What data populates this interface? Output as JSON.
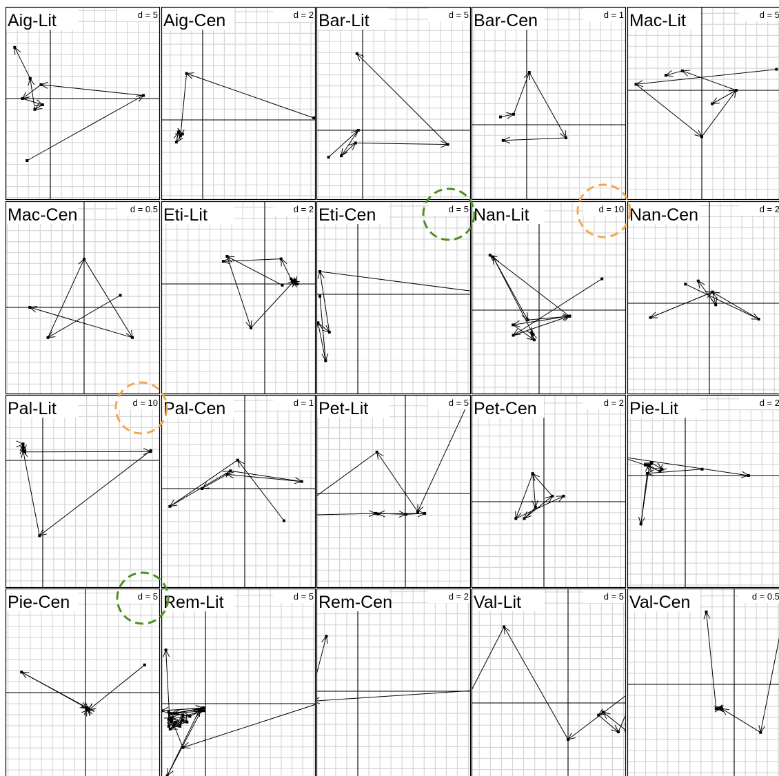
{
  "chart_data": [
    {
      "type": "trajectory",
      "title": "Aig-Lit",
      "scale": "d = 5",
      "points": [
        [
          -1.5,
          -4.0
        ],
        [
          6.0,
          0.2
        ],
        [
          -0.6,
          0.9
        ],
        [
          -1.8,
          0.0
        ],
        [
          -0.5,
          -0.4
        ],
        [
          -1.0,
          -0.7
        ],
        [
          -1.3,
          1.3
        ],
        [
          -2.3,
          3.3
        ]
      ]
    },
    {
      "type": "trajectory",
      "title": "Aig-Cen",
      "scale": "d = 2",
      "points": [
        [
          5.5,
          0.1
        ],
        [
          -0.8,
          2.3
        ],
        [
          -1.1,
          -0.8
        ],
        [
          -1.3,
          -1.1
        ],
        [
          -1.2,
          -0.6
        ],
        [
          -1.0,
          -0.7
        ]
      ]
    },
    {
      "type": "trajectory",
      "title": "Bar-Lit",
      "scale": "d = 5",
      "points": [
        [
          -2.4,
          -1.9
        ],
        [
          -0.3,
          0.0
        ],
        [
          -1.5,
          -1.8
        ],
        [
          -0.5,
          -0.9
        ],
        [
          6.0,
          -1.0
        ],
        [
          -0.4,
          5.4
        ]
      ]
    },
    {
      "type": "trajectory",
      "title": "Bar-Cen",
      "scale": "d = 1",
      "points": [
        [
          -1.0,
          0.3
        ],
        [
          -0.5,
          0.4
        ],
        [
          0.1,
          2.0
        ],
        [
          1.5,
          -0.5
        ],
        [
          -0.9,
          -0.6
        ]
      ]
    },
    {
      "type": "trajectory",
      "title": "Mac-Lit",
      "scale": "d = 5",
      "points": [
        [
          5.0,
          1.4
        ],
        [
          -4.4,
          0.4
        ],
        [
          0.0,
          -3.1
        ],
        [
          2.3,
          0.0
        ],
        [
          0.7,
          -0.9
        ],
        [
          2.3,
          0.0
        ],
        [
          -1.3,
          1.3
        ],
        [
          -2.4,
          1.0
        ]
      ]
    },
    {
      "type": "trajectory",
      "title": "Mac-Cen",
      "scale": "d = 0.5",
      "points": [
        [
          0.6,
          0.2
        ],
        [
          -0.6,
          -0.5
        ],
        [
          0.0,
          0.8
        ],
        [
          0.8,
          -0.5
        ],
        [
          -0.9,
          0.0
        ]
      ]
    },
    {
      "type": "trajectory",
      "title": "Eti-Lit",
      "scale": "d = 2",
      "points": [
        [
          1.4,
          -0.1
        ],
        [
          -3.0,
          2.2
        ],
        [
          -1.1,
          -3.5
        ],
        [
          2.4,
          0.3
        ],
        [
          2.5,
          0.0
        ],
        [
          2.1,
          0.4
        ],
        [
          2.6,
          0.0
        ],
        [
          2.2,
          0.2
        ],
        [
          1.3,
          2.0
        ],
        [
          -3.3,
          1.8
        ]
      ]
    },
    {
      "type": "trajectory",
      "title": "Eti-Cen",
      "scale": "d = 5",
      "points": [
        [
          -2.0,
          -0.1
        ],
        [
          -1.7,
          -3.5
        ],
        [
          -2.1,
          -1.5
        ],
        [
          -1.5,
          -2.0
        ],
        [
          -2.0,
          1.2
        ],
        [
          7.3,
          0.0
        ]
      ]
    },
    {
      "type": "trajectory",
      "title": "Nan-Lit",
      "scale": "d = 10",
      "points": [
        [
          20.5,
          10.2
        ],
        [
          -8.4,
          -8.2
        ],
        [
          10.0,
          -1.9
        ],
        [
          -8.5,
          -4.8
        ],
        [
          -1.6,
          -9.7
        ],
        [
          -2.4,
          -7.3
        ],
        [
          -1.9,
          -7.9
        ],
        [
          -15.0,
          17.3
        ],
        [
          -3.7,
          -3.2
        ],
        [
          9.9,
          -2.0
        ],
        [
          -16.0,
          17.9
        ]
      ]
    },
    {
      "type": "trajectory",
      "title": "Nan-Cen",
      "scale": "d = 2",
      "points": [
        [
          -1.5,
          1.2
        ],
        [
          3.1,
          -1.0
        ],
        [
          0.2,
          0.7
        ],
        [
          -3.7,
          -0.9
        ],
        [
          0.2,
          0.7
        ],
        [
          0.4,
          -0.1
        ],
        [
          -0.7,
          1.4
        ]
      ]
    },
    {
      "type": "trajectory",
      "title": "Pal-Lit",
      "scale": "d = 10",
      "points": [
        [
          33.0,
          3.0
        ],
        [
          -1.0,
          -23.0
        ],
        [
          -6.0,
          3.0
        ],
        [
          -6.0,
          4.0
        ],
        [
          -6.0,
          5.0
        ],
        [
          -6.0,
          5.0
        ],
        [
          -5.5,
          2.6
        ],
        [
          32.9,
          2.7
        ]
      ]
    },
    {
      "type": "trajectory",
      "title": "Pal-Cen",
      "scale": "d = 1",
      "points": [
        [
          1.1,
          -0.9
        ],
        [
          -0.2,
          0.8
        ],
        [
          -2.1,
          -0.5
        ],
        [
          -0.4,
          0.5
        ],
        [
          1.6,
          0.2
        ],
        [
          -0.5,
          0.4
        ],
        [
          -1.2,
          0.0
        ]
      ]
    },
    {
      "type": "trajectory",
      "title": "Pet-Lit",
      "scale": "d = 5",
      "points": [
        [
          14.1,
          -17.0
        ],
        [
          12.2,
          18.0
        ],
        [
          2.3,
          -3.4
        ],
        [
          -5.3,
          7.7
        ],
        [
          -21.5,
          -4.1
        ],
        [
          -5.5,
          -3.7
        ],
        [
          0.1,
          -3.9
        ],
        [
          3.6,
          -3.7
        ],
        [
          -5.1,
          -3.8
        ]
      ]
    },
    {
      "type": "trajectory",
      "title": "Pet-Cen",
      "scale": "d = 2",
      "points": [
        [
          -0.4,
          1.0
        ],
        [
          -0.3,
          -0.2
        ],
        [
          -0.7,
          -0.6
        ],
        [
          0.3,
          0.2
        ],
        [
          -0.4,
          1.0
        ],
        [
          -1.0,
          -0.6
        ],
        [
          0.7,
          0.2
        ]
      ]
    },
    {
      "type": "trajectory",
      "title": "Pie-Lit",
      "scale": "d = 2",
      "points": [
        [
          0.8,
          0.3
        ],
        [
          -1.8,
          0.1
        ],
        [
          -2.1,
          -2.3
        ],
        [
          -1.7,
          0.5
        ],
        [
          -1.8,
          0.5
        ],
        [
          -1.6,
          0.6
        ],
        [
          -1.1,
          0.3
        ],
        [
          -1.2,
          0.2
        ],
        [
          -1.9,
          0.5
        ],
        [
          -3.1,
          0.9
        ],
        [
          3.0,
          0.0
        ]
      ]
    },
    {
      "type": "trajectory",
      "title": "Pie-Cen",
      "scale": "d = 5",
      "points": [
        [
          9.8,
          4.6
        ],
        [
          0.5,
          -2.9
        ],
        [
          0.3,
          -2.7
        ],
        [
          0.3,
          -2.5
        ],
        [
          -10.6,
          3.4
        ],
        [
          0.3,
          -2.6
        ],
        [
          0.5,
          -2.8
        ],
        [
          0.5,
          -2.8
        ],
        [
          0.3,
          -2.9
        ],
        [
          0.2,
          -2.7
        ]
      ]
    },
    {
      "type": "trajectory",
      "title": "Rem-Lit",
      "scale": "d = 5",
      "points": [
        [
          9.5,
          0.5
        ],
        [
          -1.6,
          -3.1
        ],
        [
          -2.6,
          -0.6
        ],
        [
          -1.1,
          -0.9
        ],
        [
          -0.3,
          -0.5
        ],
        [
          -2.7,
          -5.1
        ],
        [
          -0.4,
          -0.4
        ],
        [
          -2.4,
          -0.7
        ],
        [
          -0.1,
          -0.3
        ],
        [
          -3.1,
          -0.5
        ],
        [
          -0.2,
          -0.3
        ],
        [
          -2.2,
          -0.7
        ],
        [
          -0.1,
          -0.5
        ],
        [
          -2.4,
          -1.1
        ],
        [
          -2.4,
          -1.2
        ],
        [
          -2.6,
          -1.1
        ],
        [
          -2.4,
          -1.0
        ],
        [
          -2.6,
          -1.6
        ],
        [
          -2.1,
          -1.3
        ],
        [
          -1.8,
          -1.6
        ],
        [
          -1.6,
          -0.8
        ],
        [
          -1.3,
          -1.3
        ],
        [
          -2.3,
          -1.6
        ],
        [
          -1.6,
          -1.2
        ],
        [
          -1.8,
          -1.5
        ],
        [
          -2.5,
          -1.8
        ],
        [
          -2.8,
          3.8
        ]
      ]
    },
    {
      "type": "trajectory",
      "title": "Rem-Cen",
      "scale": "d = 2",
      "points": [
        [
          8.4,
          0.2
        ],
        [
          -2.3,
          -0.5
        ],
        [
          -2.7,
          -1.8
        ],
        [
          -2.4,
          -0.3
        ],
        [
          -1.6,
          2.8
        ]
      ]
    },
    {
      "type": "trajectory",
      "title": "Val-Lit",
      "scale": "d = 5",
      "points": [
        [
          4.6,
          0.6
        ],
        [
          3.8,
          -1.8
        ],
        [
          2.3,
          -0.6
        ],
        [
          2.0,
          -0.8
        ],
        [
          3.3,
          -1.9
        ],
        [
          4.6,
          1.1
        ],
        [
          0.0,
          -2.4
        ],
        [
          -4.2,
          5.0
        ],
        [
          -8.0,
          -2.4
        ]
      ]
    },
    {
      "type": "trajectory",
      "title": "Val-Cen",
      "scale": "d = 0.5",
      "points": [
        [
          0.97,
          1.4
        ],
        [
          0.51,
          -0.93
        ],
        [
          -0.24,
          -0.47
        ],
        [
          -0.34,
          -0.47
        ],
        [
          -0.25,
          -0.46
        ],
        [
          -0.35,
          -0.47
        ],
        [
          -0.54,
          1.4
        ]
      ]
    }
  ]
}
